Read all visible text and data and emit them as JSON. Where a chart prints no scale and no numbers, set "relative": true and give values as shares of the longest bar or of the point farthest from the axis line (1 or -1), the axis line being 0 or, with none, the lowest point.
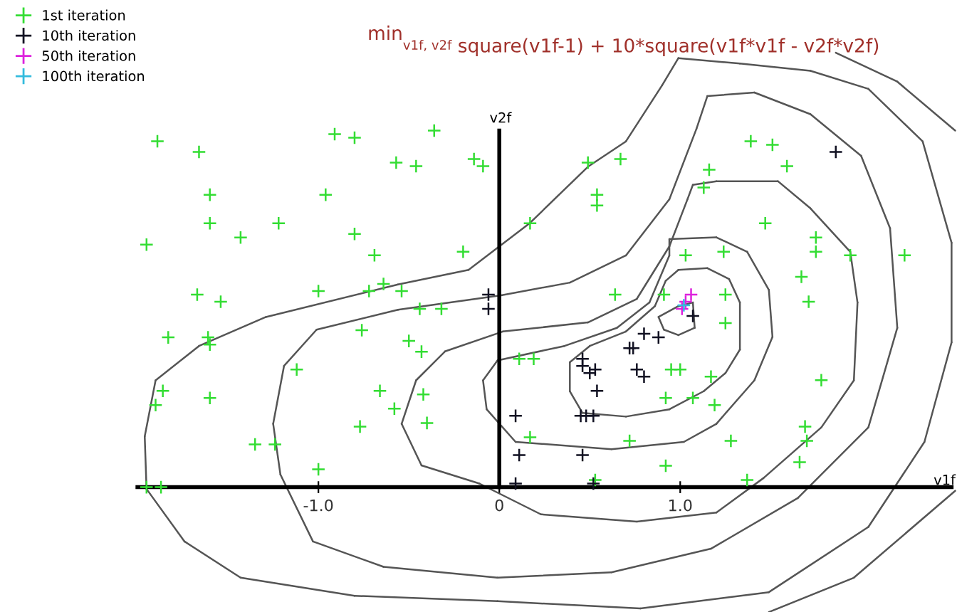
{
  "chart_data": {
    "type": "scatter",
    "title": "min$_{v1f, v2f}$ square(v1f-1) + 10*square(v1f*v1f - v2f*v2f)",
    "xlabel": "v1f",
    "ylabel": "v2f",
    "relative": true,
    "xlim": [
      -2.76,
      2.53
    ],
    "xticks": [
      {
        "value": -1,
        "label": "-1.0"
      },
      0,
      {
        "value": 1,
        "label": "1.0"
      }
    ],
    "tick_labels": "x",
    "legend": "top left",
    "marker": "cross",
    "series": [
      {
        "name": "1st iteration",
        "color": "#33dd33",
        "x": [
          -1.89,
          -1.66,
          -0.91,
          -0.8,
          -0.36,
          -0.57,
          -0.46,
          -0.14,
          -0.09,
          -1.6,
          -0.96,
          -1.6,
          -1.22,
          -1.43,
          -1.95,
          -0.8,
          -0.69,
          -0.2,
          0.17,
          -1.67,
          -1.54,
          -1.0,
          -0.72,
          -0.64,
          -0.54,
          -0.44,
          -0.32,
          -1.83,
          -1.61,
          -1.6,
          -0.76,
          -0.5,
          -0.43,
          -1.12,
          -1.86,
          -1.9,
          -1.6,
          -0.66,
          -0.58,
          -0.42,
          -0.4,
          -0.77,
          -1.35,
          -1.24,
          -1.0,
          -1.95,
          -1.87,
          0.11,
          0.19,
          0.17,
          1.39,
          1.51,
          1.59,
          0.49,
          0.67,
          1.16,
          1.13,
          0.54,
          0.54,
          1.47,
          1.75,
          1.75,
          1.94,
          1.67,
          1.71,
          1.03,
          1.24,
          0.91,
          1.25,
          1.25,
          0.64,
          0.95,
          1.0,
          1.17,
          1.78,
          0.92,
          1.07,
          1.19,
          0.72,
          1.28,
          1.69,
          1.7,
          0.92,
          1.66,
          1.37,
          0.53,
          2.24
        ],
        "values": [
          0.97,
          0.94,
          0.99,
          0.98,
          1.0,
          0.91,
          0.9,
          0.92,
          0.9,
          0.82,
          0.82,
          0.74,
          0.74,
          0.7,
          0.68,
          0.71,
          0.65,
          0.66,
          0.74,
          0.54,
          0.52,
          0.55,
          0.55,
          0.57,
          0.55,
          0.5,
          0.5,
          0.42,
          0.42,
          0.4,
          0.44,
          0.41,
          0.38,
          0.33,
          0.27,
          0.23,
          0.25,
          0.27,
          0.22,
          0.26,
          0.18,
          0.17,
          0.12,
          0.12,
          0.05,
          0.0,
          0.0,
          0.36,
          0.36,
          0.14,
          0.97,
          0.96,
          0.9,
          0.91,
          0.92,
          0.89,
          0.84,
          0.82,
          0.79,
          0.74,
          0.7,
          0.66,
          0.65,
          0.59,
          0.52,
          0.65,
          0.66,
          0.54,
          0.54,
          0.46,
          0.54,
          0.33,
          0.33,
          0.31,
          0.3,
          0.25,
          0.25,
          0.23,
          0.13,
          0.13,
          0.17,
          0.13,
          0.06,
          0.07,
          0.02,
          0.02,
          0.65
        ]
      },
      {
        "name": "10th iteration",
        "color": "#111122",
        "x": [
          1.86,
          0.8,
          0.88,
          0.74,
          0.72,
          0.76,
          0.8,
          0.46,
          0.46,
          0.5,
          0.53,
          0.54,
          0.45,
          0.48,
          0.52,
          0.09,
          0.11,
          0.46,
          0.09,
          0.52,
          1.07,
          -0.06,
          -0.06
        ],
        "values": [
          0.94,
          0.43,
          0.42,
          0.39,
          0.39,
          0.33,
          0.31,
          0.36,
          0.34,
          0.32,
          0.33,
          0.27,
          0.2,
          0.2,
          0.2,
          0.2,
          0.09,
          0.09,
          0.01,
          0.01,
          0.48,
          0.54,
          0.5
        ]
      },
      {
        "name": "50th iteration",
        "color": "#dd22dd",
        "x": [
          1.03,
          1.06,
          1.01
        ],
        "values": [
          0.52,
          0.54,
          0.5
        ]
      },
      {
        "name": "100th iteration",
        "color": "#33bbdd",
        "x": [
          1.02
        ],
        "values": [
          0.51
        ]
      }
    ]
  }
}
